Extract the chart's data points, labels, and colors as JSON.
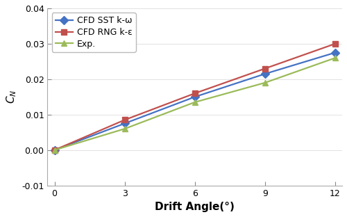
{
  "x": [
    0,
    3,
    6,
    9,
    12
  ],
  "sst_kw": [
    0.0,
    0.0075,
    0.015,
    0.0215,
    0.0275
  ],
  "rng_ke": [
    0.0,
    0.0085,
    0.016,
    0.023,
    0.03
  ],
  "exp": [
    0.0,
    0.006,
    0.0135,
    0.019,
    0.026
  ],
  "sst_color": "#4472C4",
  "rng_color": "#C0504D",
  "exp_color": "#9BBB59",
  "sst_label": "CFD SST k-ω",
  "rng_label": "CFD RNG k-ε",
  "exp_label": "Exp.",
  "xlabel": "Drift Angle(°)",
  "ylabel": "$C_N$",
  "ylim": [
    -0.01,
    0.04
  ],
  "xlim": [
    -0.3,
    12.3
  ],
  "yticks": [
    -0.01,
    0.0,
    0.01,
    0.02,
    0.03,
    0.04
  ],
  "xticks": [
    0,
    3,
    6,
    9,
    12
  ],
  "label_fontsize": 11,
  "legend_fontsize": 9,
  "linewidth": 1.6,
  "markersize": 6
}
